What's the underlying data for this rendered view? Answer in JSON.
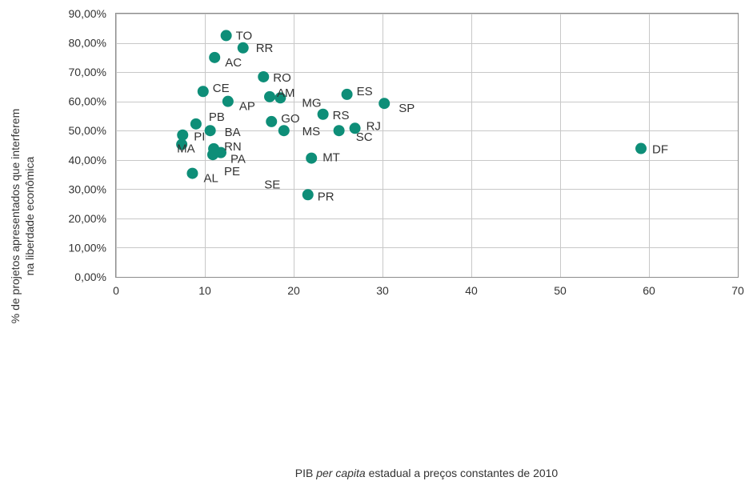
{
  "chart_data": {
    "type": "scatter",
    "xlabel_parts": [
      "PIB ",
      "per capita",
      " estadual a preços constantes de 2010"
    ],
    "ylabel_lines": [
      "% de projetos apresentados que interferem",
      "na liberdade econômica"
    ],
    "xlim": [
      0,
      70
    ],
    "ylim": [
      0,
      90
    ],
    "x_ticks": [
      0,
      10,
      20,
      30,
      40,
      50,
      60,
      70
    ],
    "x_tick_labels": [
      "0",
      "10",
      "20",
      "30",
      "40",
      "50",
      "60",
      "70"
    ],
    "y_ticks": [
      0,
      10,
      20,
      30,
      40,
      50,
      60,
      70,
      80,
      90
    ],
    "y_tick_labels": [
      "0,00%",
      "10,00%",
      "20,00%",
      "30,00%",
      "40,00%",
      "50,00%",
      "60,00%",
      "70,00%",
      "80,00%",
      "90,00%"
    ],
    "grid": true,
    "marker_color": "#0e8e78",
    "points": [
      {
        "label": "TO",
        "x": 12.4,
        "y": 82.5
      },
      {
        "label": "RR",
        "x": 14.3,
        "y": 78.3
      },
      {
        "label": "AC",
        "x": 11.1,
        "y": 75.0
      },
      {
        "label": "RO",
        "x": 16.6,
        "y": 68.4
      },
      {
        "label": "CE",
        "x": 9.8,
        "y": 63.4
      },
      {
        "label": "ES",
        "x": 26.0,
        "y": 62.4
      },
      {
        "label": "AM",
        "x": 17.3,
        "y": 61.6
      },
      {
        "label": "MG",
        "x": 18.5,
        "y": 61.2
      },
      {
        "label": "AP",
        "x": 12.6,
        "y": 60.0
      },
      {
        "label": "SP",
        "x": 30.2,
        "y": 59.3
      },
      {
        "label": "RS",
        "x": 23.3,
        "y": 55.6
      },
      {
        "label": "PB",
        "x": 9.0,
        "y": 52.3
      },
      {
        "label": "GO",
        "x": 17.5,
        "y": 53.1
      },
      {
        "label": "RJ",
        "x": 26.9,
        "y": 50.8
      },
      {
        "label": "BA",
        "x": 10.6,
        "y": 50.0
      },
      {
        "label": "MS",
        "x": 25.1,
        "y": 50.0
      },
      {
        "label": "SC",
        "x": 18.9,
        "y": 50.0
      },
      {
        "label": "PI",
        "x": 7.5,
        "y": 48.5
      },
      {
        "label": "MA",
        "x": 7.4,
        "y": 45.3
      },
      {
        "label": "RN",
        "x": 11.0,
        "y": 43.8
      },
      {
        "label": "PA",
        "x": 11.8,
        "y": 42.5
      },
      {
        "label": "PE",
        "x": 10.9,
        "y": 41.8
      },
      {
        "label": "SE",
        "x": 22.0,
        "y": 40.6
      },
      {
        "label": "MT",
        "x": 22.0,
        "y": 40.6
      },
      {
        "label": "AL",
        "x": 8.6,
        "y": 35.4
      },
      {
        "label": "PR",
        "x": 21.6,
        "y": 28.1
      },
      {
        "label": "DF",
        "x": 59.1,
        "y": 43.9
      }
    ]
  }
}
